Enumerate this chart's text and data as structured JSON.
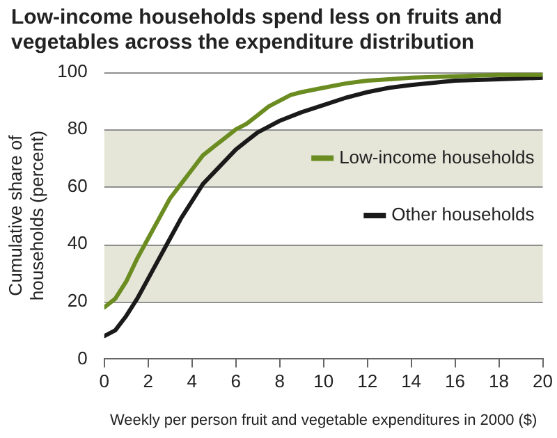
{
  "chart_data": {
    "type": "line",
    "title": "Low-income households spend less on fruits and vegetables across the expenditure distribution",
    "xlabel": "Weekly per person fruit and vegetable expenditures in 2000 ($)",
    "ylabel": "Cumulative share of households (percent)",
    "series": [
      {
        "name": "Low-income households",
        "color": "#6b8c21",
        "x": [
          0,
          0.5,
          1,
          1.5,
          2,
          2.5,
          3,
          3.5,
          4,
          4.5,
          5,
          5.5,
          6,
          6.5,
          7,
          7.5,
          8,
          8.5,
          9,
          10,
          11,
          12,
          13,
          14,
          16,
          18,
          20
        ],
        "values": [
          18,
          21,
          27,
          35,
          42,
          49,
          56,
          61,
          66,
          71,
          74,
          77,
          80,
          82,
          85,
          88,
          90,
          92,
          93,
          94.5,
          96,
          97,
          97.5,
          98,
          98.5,
          99,
          99
        ]
      },
      {
        "name": "Other households",
        "color": "#1a1a1a",
        "x": [
          0,
          0.5,
          1,
          1.5,
          2,
          2.5,
          3,
          3.5,
          4,
          4.5,
          5,
          5.5,
          6,
          6.5,
          7,
          7.5,
          8,
          9,
          10,
          11,
          12,
          13,
          14,
          16,
          18,
          20
        ],
        "values": [
          8,
          10,
          15,
          21,
          28,
          35,
          42,
          49,
          55,
          61,
          65,
          69,
          73,
          76,
          79,
          81,
          83,
          86,
          88.5,
          91,
          93,
          94.5,
          95.5,
          97,
          97.5,
          98
        ]
      }
    ],
    "xlim": [
      0,
      20
    ],
    "xticks": [
      0,
      2,
      4,
      6,
      8,
      10,
      12,
      14,
      16,
      18,
      20
    ],
    "ylim": [
      0,
      100
    ],
    "yticks": [
      0,
      20,
      40,
      60,
      80,
      100
    ],
    "bands": [
      {
        "axis": "y",
        "from": 20,
        "to": 40,
        "color": "#e5e6d8"
      },
      {
        "axis": "y",
        "from": 60,
        "to": 80,
        "color": "#e5e6d8"
      }
    ],
    "grid": "y",
    "legend": "right",
    "marker": "none",
    "line_style": "solid"
  }
}
